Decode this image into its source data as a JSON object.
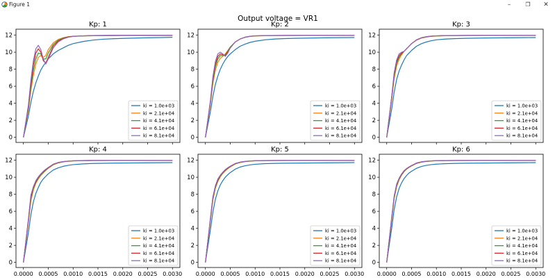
{
  "window": {
    "title": "Figure 1",
    "minimize_glyph": "–",
    "maximize_glyph": "❐",
    "close_glyph": "✕"
  },
  "chart_data": {
    "type": "line",
    "suptitle": "Output voltage = VR1",
    "x": [
      0.0,
      0.0001,
      0.00015,
      0.0002,
      0.00025,
      0.0003,
      0.00035,
      0.0004,
      0.00045,
      0.0005,
      0.0006,
      0.0007,
      0.0008,
      0.0009,
      0.001,
      0.0012,
      0.0014,
      0.0016,
      0.0018,
      0.002,
      0.0022,
      0.0024,
      0.0026,
      0.0028,
      0.003
    ],
    "xlim": [
      -0.00015,
      0.00315
    ],
    "ylim": [
      -0.6,
      12.7
    ],
    "xticks": [
      0.0,
      0.0005,
      0.001,
      0.0015,
      0.002,
      0.0025,
      0.003
    ],
    "xtick_labels": [
      "0.0000",
      "0.0005",
      "0.0010",
      "0.0015",
      "0.0020",
      "0.0025",
      "0.0030"
    ],
    "yticks": [
      0,
      2,
      4,
      6,
      8,
      10,
      12
    ],
    "ytick_labels": [
      "0",
      "2",
      "4",
      "6",
      "8",
      "10",
      "12"
    ],
    "series_colors": [
      "#1f77b4",
      "#ff7f0e",
      "#2ca02c",
      "#d62728",
      "#9467bd"
    ],
    "legend_position": "lower right",
    "subplots": [
      {
        "title": "Kp: 1",
        "series": [
          {
            "name": "ki = 1.0e+03",
            "values": [
              0,
              2.5,
              4.1,
              5.4,
              6.4,
              7.2,
              7.9,
              8.4,
              8.8,
              9.2,
              9.8,
              10.2,
              10.5,
              10.8,
              11.0,
              11.25,
              11.42,
              11.52,
              11.58,
              11.62,
              11.65,
              11.68,
              11.7,
              11.72,
              11.75
            ]
          },
          {
            "name": "ki = 2.1e+04",
            "values": [
              0,
              3.2,
              5.5,
              7.3,
              8.6,
              9.4,
              9.6,
              9.4,
              9.6,
              10.3,
              11.1,
              11.5,
              11.7,
              11.82,
              11.88,
              11.92,
              11.94,
              11.95,
              11.95,
              11.96,
              11.96,
              11.96,
              11.96,
              11.96,
              11.96
            ]
          },
          {
            "name": "ki = 4.1e+04",
            "values": [
              0,
              3.4,
              5.9,
              7.9,
              9.2,
              9.9,
              9.8,
              9.2,
              9.2,
              9.9,
              10.9,
              11.4,
              11.65,
              11.8,
              11.86,
              11.9,
              11.93,
              11.94,
              11.95,
              11.96,
              11.96,
              11.96,
              11.96,
              11.96,
              11.96
            ]
          },
          {
            "name": "ki = 6.1e+04",
            "values": [
              0,
              3.6,
              6.3,
              8.5,
              9.9,
              10.4,
              10.0,
              9.0,
              8.7,
              9.4,
              10.7,
              11.3,
              11.6,
              11.78,
              11.86,
              11.92,
              11.95,
              11.96,
              11.97,
              11.97,
              11.97,
              11.97,
              11.97,
              11.97,
              11.97
            ]
          },
          {
            "name": "ki = 8.1e+04",
            "values": [
              0,
              3.8,
              6.7,
              9.0,
              10.4,
              10.8,
              10.3,
              9.2,
              8.6,
              9.2,
              10.5,
              11.2,
              11.55,
              11.75,
              11.85,
              11.92,
              11.96,
              11.98,
              11.99,
              11.99,
              11.99,
              11.99,
              11.99,
              11.99,
              11.99
            ]
          }
        ]
      },
      {
        "title": "Kp: 2",
        "series": [
          {
            "name": "ki = 1.0e+03",
            "values": [
              0,
              3.0,
              4.8,
              6.2,
              7.2,
              8.0,
              8.6,
              9.1,
              9.5,
              9.8,
              10.3,
              10.7,
              10.95,
              11.15,
              11.28,
              11.45,
              11.55,
              11.6,
              11.63,
              11.65,
              11.67,
              11.69,
              11.7,
              11.71,
              11.72
            ]
          },
          {
            "name": "ki = 2.1e+04",
            "values": [
              0,
              3.9,
              6.3,
              7.9,
              8.8,
              9.3,
              9.5,
              9.8,
              10.2,
              10.6,
              11.2,
              11.55,
              11.75,
              11.85,
              11.9,
              11.93,
              11.94,
              11.95,
              11.95,
              11.96,
              11.96,
              11.96,
              11.96,
              11.96,
              11.96
            ]
          },
          {
            "name": "ki = 4.1e+04",
            "values": [
              0,
              4.1,
              6.6,
              8.3,
              9.2,
              9.6,
              9.6,
              9.7,
              10.1,
              10.6,
              11.2,
              11.55,
              11.75,
              11.86,
              11.91,
              11.94,
              11.95,
              11.96,
              11.96,
              11.96,
              11.96,
              11.96,
              11.96,
              11.96,
              11.96
            ]
          },
          {
            "name": "ki = 6.1e+04",
            "values": [
              0,
              4.2,
              6.9,
              8.6,
              9.5,
              9.8,
              9.7,
              9.6,
              10.0,
              10.5,
              11.2,
              11.55,
              11.76,
              11.87,
              11.92,
              11.95,
              11.96,
              11.97,
              11.97,
              11.97,
              11.97,
              11.97,
              11.97,
              11.97,
              11.97
            ]
          },
          {
            "name": "ki = 8.1e+04",
            "values": [
              0,
              4.3,
              7.1,
              8.9,
              9.8,
              10.0,
              9.8,
              9.5,
              9.9,
              10.5,
              11.2,
              11.55,
              11.77,
              11.88,
              11.93,
              11.96,
              11.97,
              11.98,
              11.98,
              11.98,
              11.98,
              11.98,
              11.98,
              11.98,
              11.98
            ]
          }
        ]
      },
      {
        "title": "Kp: 3",
        "series": [
          {
            "name": "ki = 1.0e+03",
            "values": [
              0,
              3.3,
              5.3,
              6.8,
              7.8,
              8.5,
              9.1,
              9.6,
              9.9,
              10.2,
              10.7,
              11.0,
              11.2,
              11.35,
              11.45,
              11.55,
              11.6,
              11.63,
              11.65,
              11.67,
              11.68,
              11.69,
              11.7,
              11.71,
              11.72
            ]
          },
          {
            "name": "ki = 2.1e+04",
            "values": [
              0,
              4.4,
              6.9,
              8.4,
              9.2,
              9.7,
              10.1,
              10.4,
              10.7,
              11.0,
              11.4,
              11.65,
              11.78,
              11.86,
              11.9,
              11.93,
              11.94,
              11.95,
              11.95,
              11.96,
              11.96,
              11.96,
              11.96,
              11.96,
              11.96
            ]
          },
          {
            "name": "ki = 4.1e+04",
            "values": [
              0,
              4.6,
              7.2,
              8.7,
              9.4,
              9.8,
              10.1,
              10.4,
              10.7,
              11.0,
              11.45,
              11.68,
              11.8,
              11.87,
              11.91,
              11.94,
              11.95,
              11.96,
              11.96,
              11.96,
              11.96,
              11.96,
              11.96,
              11.96,
              11.96
            ]
          },
          {
            "name": "ki = 6.1e+04",
            "values": [
              0,
              4.7,
              7.4,
              8.9,
              9.6,
              9.9,
              10.1,
              10.4,
              10.7,
              11.0,
              11.45,
              11.7,
              11.82,
              11.88,
              11.92,
              11.95,
              11.96,
              11.97,
              11.97,
              11.97,
              11.97,
              11.97,
              11.97,
              11.97,
              11.97
            ]
          },
          {
            "name": "ki = 8.1e+04",
            "values": [
              0,
              4.8,
              7.6,
              9.1,
              9.8,
              10.0,
              10.1,
              10.4,
              10.7,
              11.0,
              11.45,
              11.7,
              11.83,
              11.9,
              11.93,
              11.96,
              11.97,
              11.98,
              11.98,
              11.98,
              11.98,
              11.98,
              11.98,
              11.98,
              11.98
            ]
          }
        ]
      },
      {
        "title": "Kp: 4",
        "series": [
          {
            "name": "ki = 1.0e+03",
            "values": [
              0,
              3.5,
              5.6,
              7.1,
              8.1,
              8.8,
              9.4,
              9.8,
              10.1,
              10.4,
              10.85,
              11.1,
              11.28,
              11.4,
              11.48,
              11.57,
              11.62,
              11.64,
              11.66,
              11.67,
              11.68,
              11.69,
              11.7,
              11.71,
              11.72
            ]
          },
          {
            "name": "ki = 2.1e+04",
            "values": [
              0,
              4.7,
              7.2,
              8.5,
              9.3,
              9.8,
              10.2,
              10.5,
              10.8,
              11.05,
              11.45,
              11.68,
              11.8,
              11.87,
              11.91,
              11.94,
              11.95,
              11.95,
              11.96,
              11.96,
              11.96,
              11.96,
              11.96,
              11.96,
              11.96
            ]
          },
          {
            "name": "ki = 4.1e+04",
            "values": [
              0,
              4.9,
              7.5,
              8.7,
              9.4,
              9.9,
              10.3,
              10.6,
              10.85,
              11.1,
              11.5,
              11.7,
              11.82,
              11.88,
              11.92,
              11.95,
              11.96,
              11.96,
              11.96,
              11.96,
              11.96,
              11.96,
              11.96,
              11.96,
              11.96
            ]
          },
          {
            "name": "ki = 6.1e+04",
            "values": [
              0,
              5.0,
              7.7,
              8.8,
              9.5,
              10.0,
              10.35,
              10.65,
              10.9,
              11.12,
              11.52,
              11.72,
              11.83,
              11.89,
              11.93,
              11.96,
              11.97,
              11.97,
              11.97,
              11.97,
              11.97,
              11.97,
              11.97,
              11.97,
              11.97
            ]
          },
          {
            "name": "ki = 8.1e+04",
            "values": [
              0,
              5.1,
              7.9,
              8.9,
              9.6,
              10.05,
              10.4,
              10.7,
              10.95,
              11.15,
              11.54,
              11.74,
              11.85,
              11.9,
              11.94,
              11.97,
              11.98,
              11.98,
              11.98,
              11.98,
              11.98,
              11.98,
              11.98,
              11.98,
              11.98
            ]
          }
        ]
      },
      {
        "title": "Kp: 5",
        "series": [
          {
            "name": "ki = 1.0e+03",
            "values": [
              0,
              3.8,
              5.9,
              7.4,
              8.4,
              9.1,
              9.6,
              10.0,
              10.3,
              10.55,
              10.95,
              11.2,
              11.35,
              11.45,
              11.52,
              11.6,
              11.63,
              11.65,
              11.66,
              11.67,
              11.68,
              11.69,
              11.7,
              11.71,
              11.72
            ]
          },
          {
            "name": "ki = 2.1e+04",
            "values": [
              0,
              4.9,
              7.3,
              8.7,
              9.5,
              10.05,
              10.45,
              10.75,
              11.0,
              11.2,
              11.55,
              11.73,
              11.83,
              11.89,
              11.92,
              11.94,
              11.95,
              11.95,
              11.96,
              11.96,
              11.96,
              11.96,
              11.96,
              11.96,
              11.96
            ]
          },
          {
            "name": "ki = 4.1e+04",
            "values": [
              0,
              5.0,
              7.5,
              8.8,
              9.6,
              10.15,
              10.5,
              10.8,
              11.05,
              11.25,
              11.58,
              11.75,
              11.84,
              11.9,
              11.93,
              11.95,
              11.96,
              11.96,
              11.96,
              11.96,
              11.96,
              11.96,
              11.96,
              11.96,
              11.96
            ]
          },
          {
            "name": "ki = 6.1e+04",
            "values": [
              0,
              5.1,
              7.6,
              8.9,
              9.7,
              10.2,
              10.55,
              10.85,
              11.08,
              11.28,
              11.6,
              11.77,
              11.86,
              11.91,
              11.94,
              11.96,
              11.97,
              11.97,
              11.97,
              11.97,
              11.97,
              11.97,
              11.97,
              11.97,
              11.97
            ]
          },
          {
            "name": "ki = 8.1e+04",
            "values": [
              0,
              5.2,
              7.7,
              9.0,
              9.8,
              10.25,
              10.6,
              10.9,
              11.12,
              11.3,
              11.62,
              11.78,
              11.87,
              11.92,
              11.95,
              11.97,
              11.98,
              11.98,
              11.98,
              11.98,
              11.98,
              11.98,
              11.98,
              11.98,
              11.98
            ]
          }
        ]
      },
      {
        "title": "Kp: 6",
        "series": [
          {
            "name": "ki = 1.0e+03",
            "values": [
              0,
              4.0,
              6.2,
              7.7,
              8.7,
              9.35,
              9.85,
              10.2,
              10.5,
              10.7,
              11.05,
              11.27,
              11.4,
              11.48,
              11.54,
              11.6,
              11.63,
              11.65,
              11.66,
              11.67,
              11.68,
              11.69,
              11.7,
              11.71,
              11.72
            ]
          },
          {
            "name": "ki = 2.1e+04",
            "values": [
              0,
              5.0,
              7.5,
              8.9,
              9.7,
              10.25,
              10.65,
              10.95,
              11.15,
              11.32,
              11.62,
              11.77,
              11.85,
              11.9,
              11.93,
              11.94,
              11.95,
              11.95,
              11.96,
              11.96,
              11.96,
              11.96,
              11.96,
              11.96,
              11.96
            ]
          },
          {
            "name": "ki = 4.1e+04",
            "values": [
              0,
              5.1,
              7.6,
              9.0,
              9.8,
              10.3,
              10.7,
              10.98,
              11.18,
              11.35,
              11.64,
              11.79,
              11.86,
              11.91,
              11.94,
              11.95,
              11.96,
              11.96,
              11.96,
              11.96,
              11.96,
              11.96,
              11.96,
              11.96,
              11.96
            ]
          },
          {
            "name": "ki = 6.1e+04",
            "values": [
              0,
              5.2,
              7.7,
              9.1,
              9.85,
              10.35,
              10.75,
              11.0,
              11.2,
              11.37,
              11.66,
              11.8,
              11.88,
              11.92,
              11.95,
              11.96,
              11.97,
              11.97,
              11.97,
              11.97,
              11.97,
              11.97,
              11.97,
              11.97,
              11.97
            ]
          },
          {
            "name": "ki = 8.1e+04",
            "values": [
              0,
              5.3,
              7.8,
              9.2,
              9.9,
              10.4,
              10.78,
              11.03,
              11.22,
              11.38,
              11.68,
              11.82,
              11.89,
              11.93,
              11.96,
              11.97,
              11.98,
              11.98,
              11.98,
              11.98,
              11.98,
              11.98,
              11.98,
              11.98,
              11.98
            ]
          }
        ]
      }
    ]
  }
}
